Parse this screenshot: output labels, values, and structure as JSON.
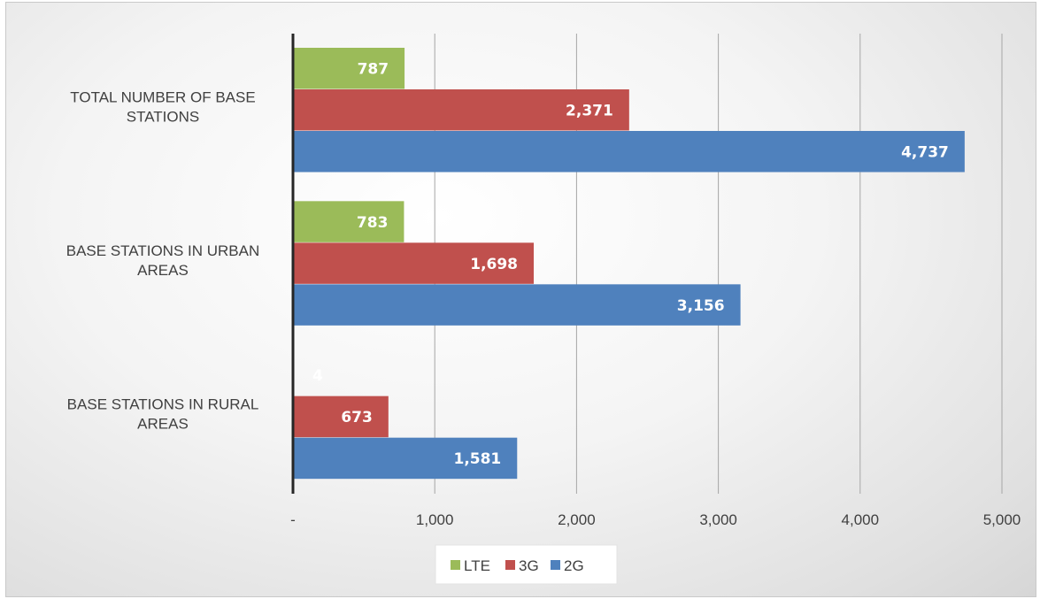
{
  "chart_data": {
    "type": "bar",
    "orientation": "horizontal",
    "categories": [
      "TOTAL NUMBER OF BASE STATIONS",
      "BASE STATIONS IN URBAN AREAS",
      "BASE STATIONS IN RURAL AREAS"
    ],
    "series": [
      {
        "name": "LTE",
        "color": "#9bbb59",
        "values": [
          787,
          783,
          4
        ],
        "labels": [
          "787",
          "783",
          "4"
        ]
      },
      {
        "name": "3G",
        "color": "#c0504d",
        "values": [
          2371,
          1698,
          673
        ],
        "labels": [
          "2,371",
          "1,698",
          "673"
        ]
      },
      {
        "name": "2G",
        "color": "#4f81bd",
        "values": [
          4737,
          3156,
          1581
        ],
        "labels": [
          "4,737",
          "3,156",
          "1,581"
        ]
      }
    ],
    "xlim": [
      0,
      5000
    ],
    "xticks": [
      0,
      1000,
      2000,
      3000,
      4000,
      5000
    ],
    "xtick_labels": [
      "-",
      "1,000",
      "2,000",
      "3,000",
      "4,000",
      "5,000"
    ],
    "grid": "vertical",
    "legend": {
      "placement": "bottom",
      "entries": [
        "LTE",
        "3G",
        "2G"
      ]
    }
  }
}
